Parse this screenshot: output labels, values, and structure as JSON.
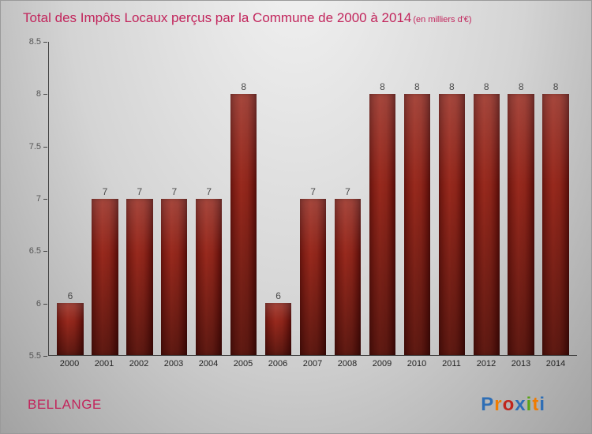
{
  "header": {
    "title": "Total des Impôts Locaux perçus par la Commune de 2000 à 2014",
    "subtitle": "(en milliers d'€)"
  },
  "chart_data": {
    "type": "bar",
    "title": "Total des Impôts Locaux perçus par la Commune de 2000 à 2014 (en milliers d'€)",
    "categories": [
      "2000",
      "2001",
      "2002",
      "2003",
      "2004",
      "2005",
      "2006",
      "2007",
      "2008",
      "2009",
      "2010",
      "2011",
      "2012",
      "2013",
      "2014"
    ],
    "values": [
      6,
      7,
      7,
      7,
      7,
      8,
      6,
      7,
      7,
      8,
      8,
      8,
      8,
      8,
      8
    ],
    "xlabel": "",
    "ylabel": "",
    "ylim": [
      5.5,
      8.5
    ],
    "ytick_labels": [
      "5.5",
      "6",
      "6.5",
      "7",
      "7.5",
      "8",
      "8.5"
    ],
    "grid": false,
    "legend": false,
    "bar_color_light": "#98291d",
    "bar_color_dark": "#5c0e0a",
    "value_label_color": "#4a4a4a"
  },
  "footer": {
    "commune": "BELLANGE",
    "logo": {
      "text": "Proxiti",
      "letters": [
        {
          "ch": "P",
          "color": "#2e6eb5"
        },
        {
          "ch": "r",
          "color": "#f07c00"
        },
        {
          "ch": "o",
          "color": "#c0251c"
        },
        {
          "ch": "x",
          "color": "#2e6eb5"
        },
        {
          "ch": "i",
          "color": "#5aa317"
        },
        {
          "ch": "t",
          "color": "#f07c00"
        },
        {
          "ch": "i",
          "color": "#2e6eb5"
        }
      ]
    }
  },
  "colors": {
    "title_text": "#c2255c",
    "background_top": "#f2f2f2",
    "background_bottom": "#a2a2a2",
    "axis": "#444444"
  }
}
